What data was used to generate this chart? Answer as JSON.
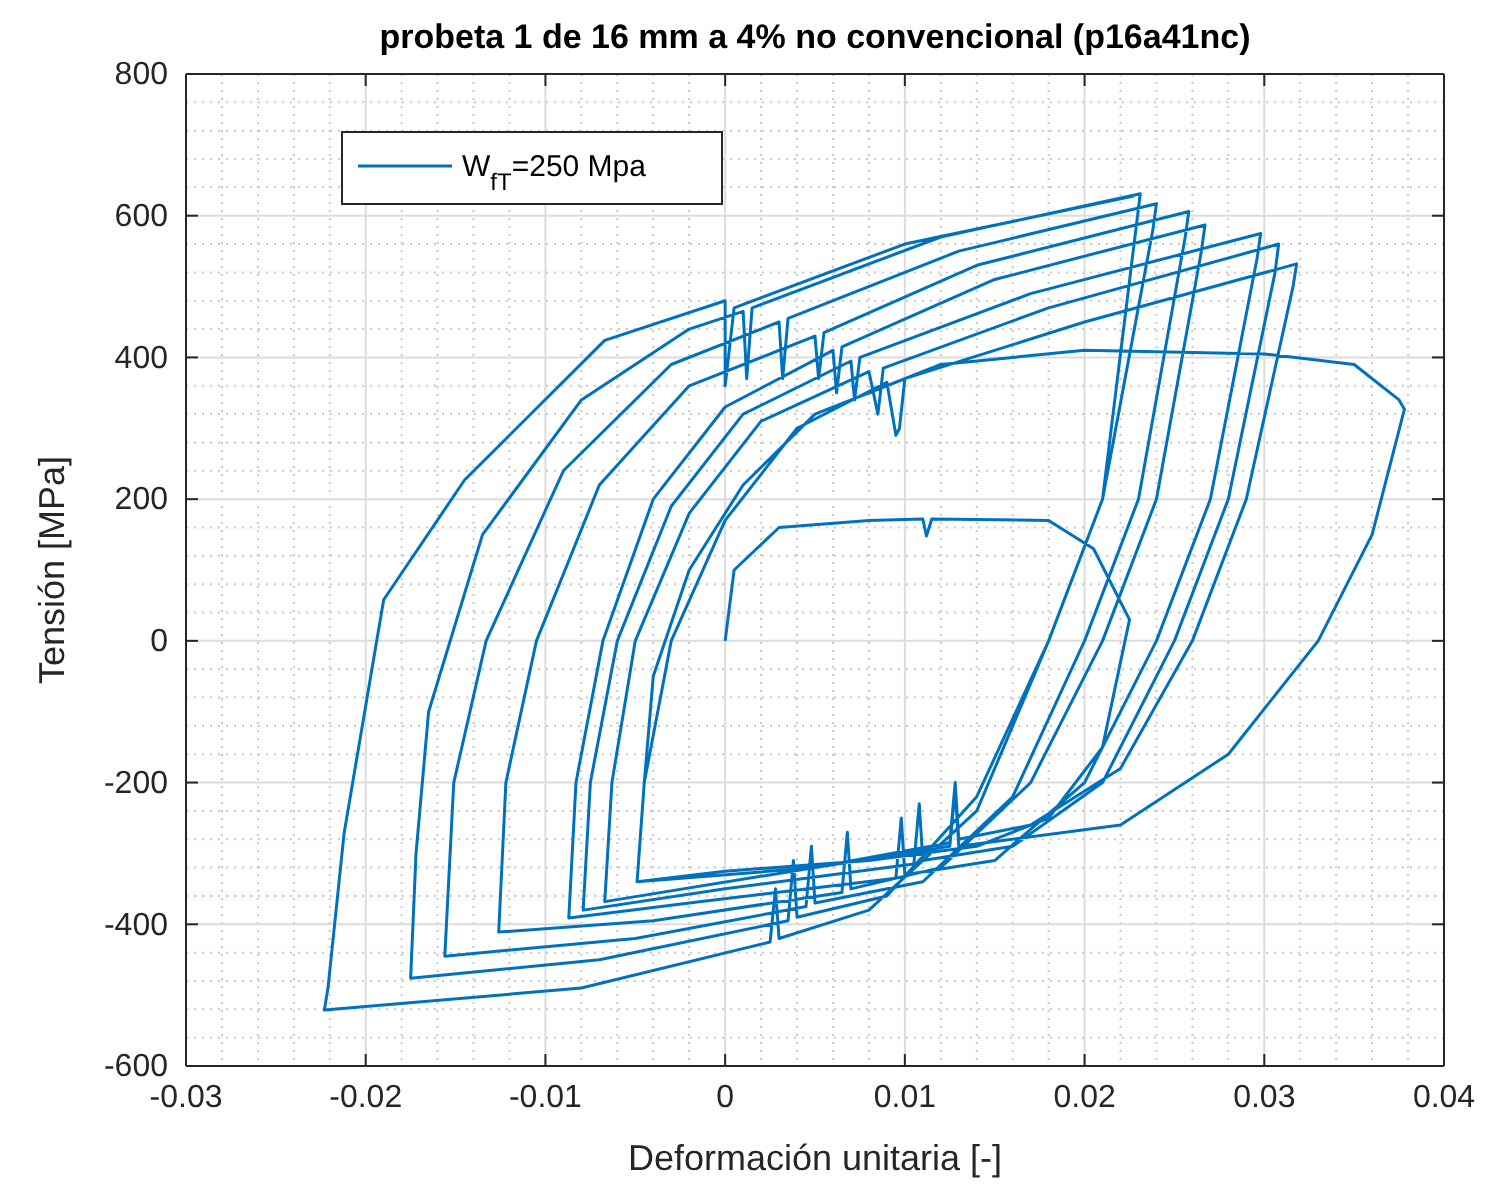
{
  "chart_data": {
    "type": "line",
    "title": "probeta 1 de 16 mm a 4% no convencional (p16a41nc)",
    "xlabel": "Deformación unitaria [-]",
    "ylabel": "Tensión [MPa]",
    "xlim": [
      -0.03,
      0.04
    ],
    "xticks": [
      -0.03,
      -0.02,
      -0.01,
      0,
      0.01,
      0.02,
      0.03,
      0.04
    ],
    "ylim": [
      -600,
      800
    ],
    "yticks": [
      -600,
      -400,
      -200,
      0,
      200,
      400,
      600,
      800
    ],
    "grid": true,
    "legend": "top left",
    "line_style": "solid",
    "marker": "none",
    "series": [
      {
        "name": "W$_{fT}$=250 Mpa",
        "color": "#0072bd",
        "x": [
          0,
          0.0005,
          0.003,
          0.008,
          0.011,
          0.0112,
          0.0115,
          0.018,
          0.0205,
          0.0225,
          0.021,
          0.018,
          0.014,
          0.008,
          0,
          -0.0049,
          -0.0045,
          -0.004,
          -0.002,
          0.001,
          0.005,
          0.012,
          0.02,
          0.03,
          0.035,
          0.0375,
          0.0378,
          0.036,
          0.033,
          0.028,
          0.022,
          0.013,
          0.0128,
          0.0125,
          0.005,
          -0.0049,
          -0.0045,
          -0.003,
          0,
          0.004,
          0.009,
          0.0095,
          0.0097,
          0.01,
          0.02,
          0.0318,
          0.0316,
          0.029,
          0.026,
          0.022,
          0.017,
          0.013,
          0.0128,
          0.0125,
          0.005,
          -0.0067,
          -0.0063,
          -0.005,
          -0.002,
          0.002,
          0.008,
          0.0085,
          0.0088,
          0.018,
          0.0308,
          0.0306,
          0.028,
          0.025,
          0.021,
          0.016,
          0.011,
          0.0108,
          0.0105,
          0,
          -0.0079,
          -0.0075,
          -0.006,
          -0.003,
          0.001,
          0.007,
          0.0072,
          0.0075,
          0.017,
          0.0298,
          0.0296,
          0.027,
          0.024,
          0.02,
          0.015,
          0.01,
          0.0098,
          0.0095,
          -0.002,
          -0.0087,
          -0.0083,
          -0.0068,
          -0.004,
          0,
          0.006,
          0.0062,
          0.0065,
          0.015,
          0.0267,
          0.0265,
          0.024,
          0.021,
          0.017,
          0.012,
          0.007,
          0.0068,
          0.0065,
          -0.004,
          -0.0126,
          -0.0122,
          -0.0105,
          -0.007,
          -0.002,
          0.005,
          0.0052,
          0.0055,
          0.014,
          0.0258,
          0.0256,
          0.023,
          0.02,
          0.016,
          0.011,
          0.005,
          0.0048,
          0.0045,
          -0.005,
          -0.0156,
          -0.0151,
          -0.0133,
          -0.009,
          -0.003,
          0.003,
          0.0032,
          0.0035,
          0.013,
          0.024,
          0.0238,
          0.021,
          0.018,
          0.014,
          0.009,
          0.004,
          0.0038,
          0.0035,
          -0.007,
          -0.0175,
          -0.0172,
          -0.0165,
          -0.0135,
          -0.008,
          -0.002,
          0.001,
          0.0012,
          0.0015,
          0.012,
          0.0231,
          0.0229,
          0.021,
          0.018,
          0.014,
          0.008,
          0.003,
          0.0028,
          0.0025,
          -0.008,
          -0.0223,
          -0.0221,
          -0.0212,
          -0.019,
          -0.0145,
          -0.0067,
          0,
          0,
          0.0005,
          0.01,
          0.0228
        ],
        "values": [
          0,
          100,
          160,
          170,
          172,
          148,
          172,
          170,
          130,
          30,
          -150,
          -250,
          -290,
          -310,
          -325,
          -340,
          -200,
          -50,
          100,
          220,
          320,
          390,
          410,
          405,
          390,
          340,
          327,
          150,
          0,
          -160,
          -260,
          -290,
          -210,
          -290,
          -320,
          -340,
          -200,
          0,
          170,
          300,
          365,
          290,
          300,
          370,
          450,
          532,
          500,
          200,
          0,
          -180,
          -260,
          -280,
          -200,
          -285,
          -320,
          -368,
          -200,
          0,
          180,
          310,
          380,
          320,
          385,
          470,
          560,
          520,
          200,
          0,
          -200,
          -290,
          -310,
          -230,
          -315,
          -350,
          -380,
          -200,
          0,
          190,
          320,
          395,
          340,
          400,
          490,
          575,
          540,
          200,
          0,
          -200,
          -310,
          -330,
          -250,
          -335,
          -370,
          -391,
          -200,
          0,
          200,
          330,
          410,
          350,
          415,
          510,
          587,
          550,
          200,
          0,
          -200,
          -320,
          -350,
          -270,
          -355,
          -395,
          -411,
          -200,
          0,
          220,
          360,
          430,
          370,
          435,
          530,
          606,
          570,
          200,
          0,
          -220,
          -340,
          -370,
          -290,
          -375,
          -420,
          -445,
          -200,
          0,
          240,
          390,
          450,
          370,
          455,
          550,
          617,
          580,
          200,
          0,
          -220,
          -360,
          -390,
          -310,
          -395,
          -450,
          -476,
          -300,
          -100,
          150,
          340,
          440,
          465,
          370,
          470,
          570,
          631,
          590,
          200,
          0,
          -240,
          -380,
          -420,
          -350,
          -425,
          -490,
          -521,
          -490,
          -271,
          58,
          227,
          424,
          480,
          360,
          470,
          560,
          628
        ]
      }
    ]
  }
}
